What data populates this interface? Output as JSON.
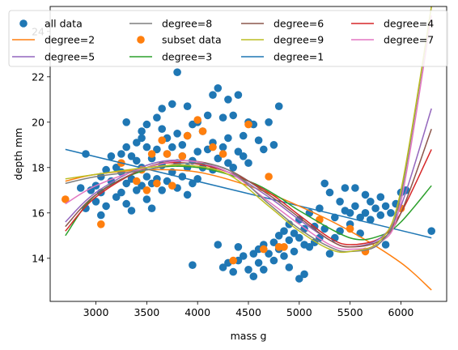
{
  "chart_data": {
    "type": "scatter",
    "xlabel": "mass g",
    "ylabel": "depth mm",
    "xlim": [
      2550,
      6450
    ],
    "ylim": [
      12.1,
      25.1
    ],
    "xticks": [
      3000,
      3500,
      4000,
      4500,
      5000,
      5500,
      6000
    ],
    "yticks": [
      14,
      16,
      18,
      20,
      22,
      24
    ],
    "grid": false,
    "legend_position": "top",
    "colors": {
      "all data": "#1f77b4",
      "subset data": "#ff7f0e",
      "degree=1": "#1f77b4",
      "degree=2": "#ff7f0e",
      "degree=3": "#2ca02c",
      "degree=4": "#d62728",
      "degree=5": "#9467bd",
      "degree=6": "#8c564b",
      "degree=7": "#e377c2",
      "degree=8": "#7f7f7f",
      "degree=9": "#bcbd22"
    },
    "scatter_series": [
      {
        "name": "all data",
        "points": [
          [
            2850,
            17.1
          ],
          [
            2900,
            18.6
          ],
          [
            2900,
            16.2
          ],
          [
            2950,
            17.0
          ],
          [
            3000,
            17.2
          ],
          [
            3000,
            16.5
          ],
          [
            3050,
            15.9
          ],
          [
            3050,
            16.9
          ],
          [
            3050,
            17.6
          ],
          [
            3100,
            17.9
          ],
          [
            3100,
            16.3
          ],
          [
            3150,
            18.5
          ],
          [
            3150,
            17.4
          ],
          [
            3200,
            18.0
          ],
          [
            3200,
            16.7
          ],
          [
            3250,
            18.6
          ],
          [
            3250,
            17.8
          ],
          [
            3250,
            16.9
          ],
          [
            3300,
            18.9
          ],
          [
            3300,
            17.3
          ],
          [
            3300,
            16.4
          ],
          [
            3300,
            20.0
          ],
          [
            3350,
            18.5
          ],
          [
            3350,
            17.5
          ],
          [
            3350,
            16.1
          ],
          [
            3400,
            19.1
          ],
          [
            3400,
            18.3
          ],
          [
            3400,
            17.0
          ],
          [
            3450,
            19.3
          ],
          [
            3450,
            18.0
          ],
          [
            3450,
            17.2
          ],
          [
            3450,
            19.6
          ],
          [
            3500,
            18.9
          ],
          [
            3500,
            17.6
          ],
          [
            3500,
            16.6
          ],
          [
            3500,
            19.9
          ],
          [
            3550,
            18.4
          ],
          [
            3550,
            17.3
          ],
          [
            3550,
            16.2
          ],
          [
            3600,
            20.2
          ],
          [
            3600,
            18.8
          ],
          [
            3600,
            17.5
          ],
          [
            3650,
            19.7
          ],
          [
            3650,
            18.1
          ],
          [
            3650,
            17.0
          ],
          [
            3650,
            20.6
          ],
          [
            3700,
            19.3
          ],
          [
            3700,
            18.6
          ],
          [
            3700,
            17.4
          ],
          [
            3750,
            20.8
          ],
          [
            3750,
            18.9
          ],
          [
            3750,
            17.8
          ],
          [
            3800,
            19.5
          ],
          [
            3800,
            18.2
          ],
          [
            3800,
            17.1
          ],
          [
            3800,
            22.2
          ],
          [
            3850,
            19.0
          ],
          [
            3850,
            18.5
          ],
          [
            3850,
            17.6
          ],
          [
            3900,
            20.7
          ],
          [
            3900,
            19.4
          ],
          [
            3900,
            18.0
          ],
          [
            3900,
            16.8
          ],
          [
            3950,
            19.9
          ],
          [
            3950,
            18.3
          ],
          [
            3950,
            17.3
          ],
          [
            3950,
            13.7
          ],
          [
            4000,
            20.0
          ],
          [
            4000,
            18.7
          ],
          [
            4000,
            17.5
          ],
          [
            4050,
            19.6
          ],
          [
            4050,
            18.0
          ],
          [
            4100,
            20.3
          ],
          [
            4100,
            18.8
          ],
          [
            4150,
            21.2
          ],
          [
            4150,
            19.1
          ],
          [
            4150,
            17.9
          ],
          [
            4200,
            21.5
          ],
          [
            4200,
            18.4
          ],
          [
            4200,
            14.6
          ],
          [
            4250,
            20.2
          ],
          [
            4250,
            18.9
          ],
          [
            4250,
            13.6
          ],
          [
            4300,
            21.0
          ],
          [
            4300,
            19.3
          ],
          [
            4300,
            18.2
          ],
          [
            4300,
            13.8
          ],
          [
            4350,
            20.3
          ],
          [
            4350,
            18.0
          ],
          [
            4350,
            13.4
          ],
          [
            4400,
            21.2
          ],
          [
            4400,
            18.7
          ],
          [
            4400,
            14.5
          ],
          [
            4400,
            13.9
          ],
          [
            4450,
            19.4
          ],
          [
            4450,
            18.5
          ],
          [
            4450,
            14.1
          ],
          [
            4500,
            20.0
          ],
          [
            4500,
            18.2
          ],
          [
            4500,
            13.5
          ],
          [
            4550,
            19.9
          ],
          [
            4550,
            14.2
          ],
          [
            4550,
            13.2
          ],
          [
            4600,
            19.2
          ],
          [
            4600,
            14.4
          ],
          [
            4600,
            13.8
          ],
          [
            4650,
            18.8
          ],
          [
            4650,
            14.6
          ],
          [
            4650,
            13.5
          ],
          [
            4700,
            20.0
          ],
          [
            4700,
            14.2
          ],
          [
            4750,
            19.0
          ],
          [
            4750,
            14.7
          ],
          [
            4750,
            13.9
          ],
          [
            4800,
            20.7
          ],
          [
            4800,
            15.0
          ],
          [
            4800,
            14.4
          ],
          [
            4850,
            15.2
          ],
          [
            4850,
            14.1
          ],
          [
            4900,
            15.5
          ],
          [
            4900,
            14.8
          ],
          [
            4900,
            13.6
          ],
          [
            4950,
            15.1
          ],
          [
            4950,
            14.3
          ],
          [
            5000,
            15.7
          ],
          [
            5000,
            14.9
          ],
          [
            5000,
            13.1
          ],
          [
            5050,
            15.3
          ],
          [
            5050,
            14.6
          ],
          [
            5050,
            13.3
          ],
          [
            5100,
            16.0
          ],
          [
            5100,
            14.5
          ],
          [
            5150,
            15.4
          ],
          [
            5150,
            14.7
          ],
          [
            5200,
            16.2
          ],
          [
            5200,
            14.9
          ],
          [
            5250,
            17.3
          ],
          [
            5250,
            15.3
          ],
          [
            5300,
            16.9
          ],
          [
            5300,
            14.2
          ],
          [
            5350,
            15.8
          ],
          [
            5350,
            14.9
          ],
          [
            5400,
            16.5
          ],
          [
            5400,
            15.2
          ],
          [
            5450,
            17.1
          ],
          [
            5450,
            16.1
          ],
          [
            5500,
            16.0
          ],
          [
            5500,
            15.5
          ],
          [
            5550,
            17.1
          ],
          [
            5550,
            16.3
          ],
          [
            5600,
            15.8
          ],
          [
            5600,
            15.1
          ],
          [
            5650,
            16.8
          ],
          [
            5650,
            16.0
          ],
          [
            5700,
            15.7
          ],
          [
            5700,
            16.5
          ],
          [
            5750,
            16.2
          ],
          [
            5800,
            15.9
          ],
          [
            5800,
            16.7
          ],
          [
            5850,
            14.6
          ],
          [
            5850,
            16.3
          ],
          [
            5900,
            16.0
          ],
          [
            5950,
            16.4
          ],
          [
            6000,
            16.9
          ],
          [
            6050,
            17.0
          ],
          [
            6300,
            15.2
          ]
        ]
      },
      {
        "name": "subset data",
        "points": [
          [
            2700,
            16.6
          ],
          [
            3050,
            15.5
          ],
          [
            3250,
            18.2
          ],
          [
            3400,
            17.4
          ],
          [
            3450,
            17.9
          ],
          [
            3500,
            17.0
          ],
          [
            3550,
            18.6
          ],
          [
            3600,
            17.3
          ],
          [
            3650,
            19.2
          ],
          [
            3700,
            18.6
          ],
          [
            3750,
            17.2
          ],
          [
            3850,
            18.5
          ],
          [
            3900,
            19.4
          ],
          [
            4000,
            20.1
          ],
          [
            4050,
            19.6
          ],
          [
            4150,
            18.9
          ],
          [
            4250,
            18.6
          ],
          [
            4350,
            13.9
          ],
          [
            4500,
            19.9
          ],
          [
            4650,
            14.4
          ],
          [
            4700,
            17.6
          ],
          [
            4800,
            14.5
          ],
          [
            4850,
            14.5
          ],
          [
            5200,
            15.7
          ],
          [
            5500,
            15.3
          ],
          [
            5650,
            14.3
          ],
          [
            6000,
            16.2
          ]
        ]
      }
    ],
    "line_series": [
      {
        "name": "degree=1",
        "x": [
          2700,
          6300
        ],
        "y": [
          18.8,
          14.9
        ]
      },
      {
        "name": "degree=2",
        "x": [
          2700,
          3000,
          3500,
          4000,
          4500,
          5000,
          5500,
          6000,
          6300
        ],
        "y": [
          17.4,
          17.7,
          17.9,
          17.8,
          17.2,
          16.3,
          15.2,
          13.8,
          12.6
        ]
      },
      {
        "name": "degree=3",
        "x": [
          2700,
          3000,
          3500,
          4000,
          4500,
          4800,
          5000,
          5500,
          5800,
          6000,
          6300
        ],
        "y": [
          15.0,
          16.8,
          17.9,
          18.0,
          17.4,
          16.7,
          16.1,
          14.9,
          15.0,
          15.6,
          17.2
        ]
      },
      {
        "name": "degree=4",
        "x": [
          2700,
          3000,
          3500,
          3900,
          4300,
          4700,
          5000,
          5300,
          5500,
          5800,
          6000,
          6300
        ],
        "y": [
          15.2,
          16.7,
          18.0,
          18.2,
          17.8,
          16.9,
          15.9,
          14.9,
          14.6,
          14.9,
          16.0,
          18.8
        ]
      },
      {
        "name": "degree=5",
        "x": [
          2700,
          3000,
          3500,
          3900,
          4300,
          4700,
          5000,
          5300,
          5500,
          5800,
          6000,
          6300
        ],
        "y": [
          15.6,
          16.9,
          18.1,
          18.3,
          17.8,
          16.7,
          15.7,
          14.8,
          14.5,
          14.9,
          16.3,
          20.6
        ]
      },
      {
        "name": "degree=6",
        "x": [
          2700,
          3000,
          3500,
          3900,
          4300,
          4700,
          5000,
          5300,
          5500,
          5800,
          6000,
          6300
        ],
        "y": [
          15.4,
          16.8,
          18.0,
          18.3,
          17.9,
          16.8,
          15.8,
          14.8,
          14.5,
          14.8,
          16.0,
          19.7
        ]
      },
      {
        "name": "degree=7",
        "x": [
          2700,
          3000,
          3500,
          3900,
          4300,
          4700,
          5000,
          5300,
          5500,
          5800,
          6000,
          6300
        ],
        "y": [
          16.4,
          17.2,
          18.0,
          18.3,
          17.8,
          16.5,
          15.5,
          14.6,
          14.4,
          14.7,
          16.5,
          24.7
        ]
      },
      {
        "name": "degree=8",
        "x": [
          2700,
          3000,
          3500,
          3900,
          4300,
          4700,
          5000,
          5300,
          5500,
          5800,
          6000,
          6300
        ],
        "y": [
          17.3,
          17.6,
          17.9,
          18.2,
          17.9,
          16.4,
          15.3,
          14.5,
          14.3,
          14.7,
          16.8,
          25.1
        ]
      },
      {
        "name": "degree=9",
        "x": [
          2700,
          3000,
          3500,
          3900,
          4300,
          4700,
          5000,
          5300,
          5500,
          5800,
          6000,
          6300
        ],
        "y": [
          17.5,
          17.7,
          18.0,
          18.1,
          17.7,
          16.3,
          15.2,
          14.4,
          14.3,
          14.8,
          17.0,
          25.1
        ]
      }
    ],
    "legend": [
      {
        "label": "all data",
        "kind": "marker"
      },
      {
        "label": "degree=2",
        "kind": "line"
      },
      {
        "label": "degree=5",
        "kind": "line"
      },
      {
        "label": "degree=8",
        "kind": "line"
      },
      {
        "label": "subset data",
        "kind": "marker"
      },
      {
        "label": "degree=3",
        "kind": "line"
      },
      {
        "label": "degree=6",
        "kind": "line"
      },
      {
        "label": "degree=9",
        "kind": "line"
      },
      {
        "label": "degree=1",
        "kind": "line"
      },
      {
        "label": "degree=4",
        "kind": "line"
      },
      {
        "label": "degree=7",
        "kind": "line"
      }
    ]
  }
}
